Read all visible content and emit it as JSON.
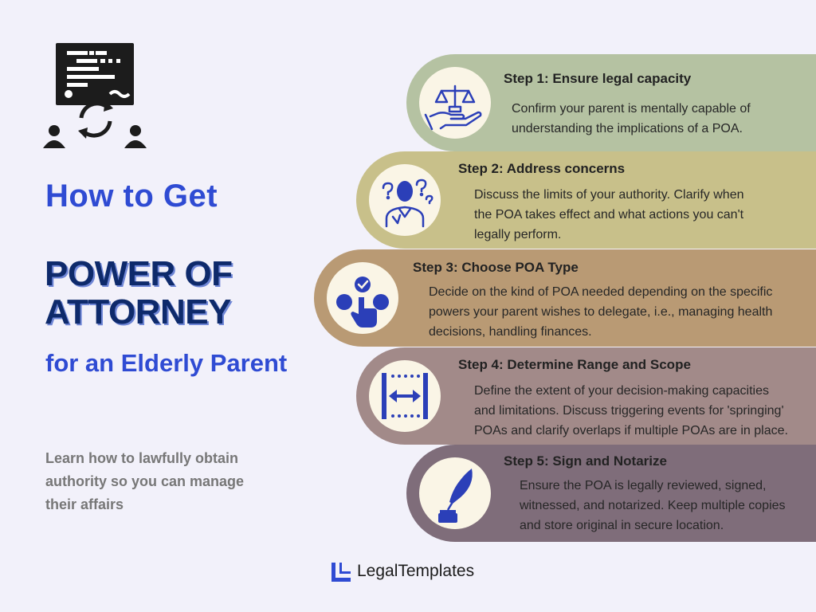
{
  "header": {
    "line1": "How to Get",
    "line2": "POWER OF ATTORNEY",
    "line3": "for an Elderly Parent",
    "subtitle": "Learn how to lawfully obtain authority so you can manage their affairs"
  },
  "steps": [
    {
      "title": "Step 1: Ensure legal capacity",
      "icon": "scales-hand-icon",
      "desc": [
        "Confirm your parent is mentally capable of",
        "understanding the implications of a POA."
      ]
    },
    {
      "title": "Step 2: Address concerns",
      "icon": "confused-person-icon",
      "desc": [
        "Discuss the limits of your authority. Clarify when",
        "the POA takes effect and what actions you can't",
        "legally perform."
      ]
    },
    {
      "title": "Step 3: Choose POA Type",
      "icon": "choice-hand-icon",
      "desc": [
        "Decide on the kind of POA needed depending on the specific",
        "powers your parent wishes to delegate, i.e., managing health",
        "decisions, handling finances."
      ]
    },
    {
      "title": "Step 4: Determine Range and Scope",
      "icon": "range-arrows-icon",
      "desc": [
        "Define the extent of your decision-making capacities",
        "and limitations. Discuss triggering events for 'springing'",
        "POAs and clarify overlaps if multiple POAs are in place."
      ]
    },
    {
      "title": "Step 5: Sign and Notarize",
      "icon": "quill-ink-icon",
      "desc": [
        "Ensure the POA is legally reviewed, signed,",
        "witnessed, and notarized. Keep multiple copies",
        "and store original in secure location."
      ]
    }
  ],
  "brand": {
    "name": "LegalTemplates",
    "icon": "legaltemplates-logo-icon"
  },
  "colors": {
    "background": "#f2f1fa",
    "title_blue": "#2f4bd3",
    "title_navy": "#0e2a6b",
    "step1": "#b5c2a2",
    "step2": "#c8c08a",
    "step3": "#b99a74",
    "step4": "#a28a89",
    "step5": "#7f6d7a",
    "icon_blue": "#2b3fb8"
  }
}
